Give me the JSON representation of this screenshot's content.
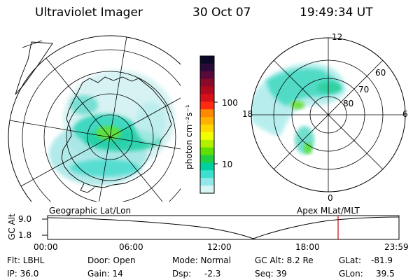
{
  "header": {
    "instrument": "Ultraviolet Imager",
    "date": "30 Oct 07",
    "time": "19:49:34 UT"
  },
  "colorbar": {
    "unit_label": "photon cm⁻²s⁻¹",
    "tick_labels": [
      "100",
      "10"
    ],
    "colors": [
      "#0a0a28",
      "#2a0a3a",
      "#5a0a3a",
      "#8a0a2a",
      "#b00a20",
      "#d8101a",
      "#ff2a10",
      "#ff8a00",
      "#ffb000",
      "#ffd800",
      "#f0ff00",
      "#b0f000",
      "#60e000",
      "#20d040",
      "#00d0a0",
      "#40e0d0",
      "#90e8e8",
      "#d8f4f4"
    ]
  },
  "left_map": {
    "caption": "Geographic Lat/Lon"
  },
  "right_map": {
    "caption": "Apex MLat/MLT",
    "mlt_labels": {
      "top": "12",
      "left": "18",
      "right": "6",
      "bottom": "0"
    },
    "lat_labels": [
      "60",
      "70",
      "80"
    ]
  },
  "timeline": {
    "ylabel": "GC Alt",
    "y_ticks": [
      "9.0",
      "1.8"
    ],
    "x_ticks": [
      "00:00",
      "06:00",
      "12:00",
      "18:00",
      "23:59"
    ],
    "marker_color": "#cc0000"
  },
  "status": {
    "filter": "Flt: LBHL",
    "ip": "IP: 36.0",
    "door": "Door: Open",
    "gain": "Gain: 14",
    "mode": "Mode: Normal",
    "dsp_label": "Dsp:",
    "dsp_value": "-2.3",
    "gc_alt": "GC Alt: 8.2 Re",
    "seq": "Seq: 39",
    "glat_label": "GLat:",
    "glat_value": "-81.9",
    "glon_label": "GLon:",
    "glon_value": "39.5"
  }
}
